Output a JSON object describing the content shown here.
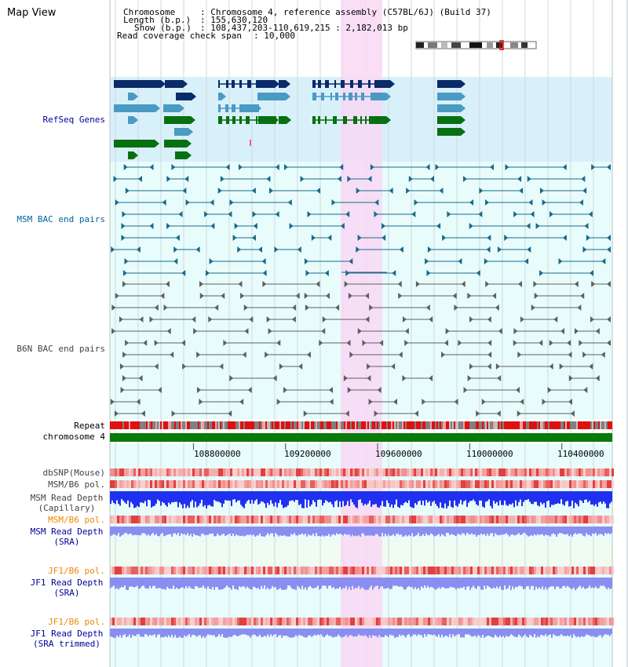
{
  "view_title": "Map View",
  "header": {
    "chromosome_key": "Chromosome",
    "chromosome_value": ": Chromosome 4, reference assembly (C57BL/6J) (Build 37)",
    "length_key": "Length (b.p.)",
    "length_value": ": 155,630,120",
    "show_key": "Show (b.p.)",
    "show_value": ": 108,437,203-110,619,215 : 2,182,013 bp",
    "coverage_key": "Read coverage check span",
    "coverage_value": ": 10,000"
  },
  "tracks": {
    "refseq": "RefSeq Genes",
    "msm_bac": "MSM BAC end pairs",
    "b6n_bac": "B6N BAC end pairs",
    "repeat": "Repeat",
    "chromosome": "chromosome 4",
    "dbsnp": "dbSNP(Mouse)",
    "msm_b6_pol": "MSM/B6 pol.",
    "msm_depth_cap_1": "MSM Read Depth",
    "msm_depth_cap_2": "(Capillary)",
    "msm_b6_pol_2": "MSM/B6 pol.",
    "msm_depth_sra_1": "MSM Read Depth",
    "msm_depth_sra_2": "(SRA)",
    "jf1_b6_pol": "JF1/B6 pol.",
    "jf1_depth_sra_1": "JF1 Read Depth",
    "jf1_depth_sra_2": "(SRA)",
    "jf1_b6_pol_2": "JF1/B6 pol.",
    "jf1_depth_trim_1": "JF1 Read Depth",
    "jf1_depth_trim_2": "(SRA trimmed)"
  },
  "axis": {
    "ticks": [
      "108800000",
      "109200000",
      "109600000",
      "110000000",
      "110400000"
    ],
    "tick_values": [
      108800000,
      109200000,
      109600000,
      110000000,
      110400000
    ],
    "range": [
      108437203,
      110619215
    ]
  },
  "colors": {
    "refseq_bg": "#d8f0fa",
    "track_bg": "#e8fcfc",
    "highlight": "#f8d8f4",
    "gene_navy": "#0a2a6a",
    "gene_blue": "#4a9ac4",
    "gene_green": "#087010",
    "bac_msm": "#1a6a8a",
    "bac_b6n": "#606060",
    "chromosome": "#0a7a0a",
    "depth_cap": "#2030f0",
    "depth_sra": "#8a8ef0",
    "label_blue": "#000099",
    "label_orange": "#ee8800",
    "label_teal": "#006699",
    "label_gray": "#444444"
  }
}
